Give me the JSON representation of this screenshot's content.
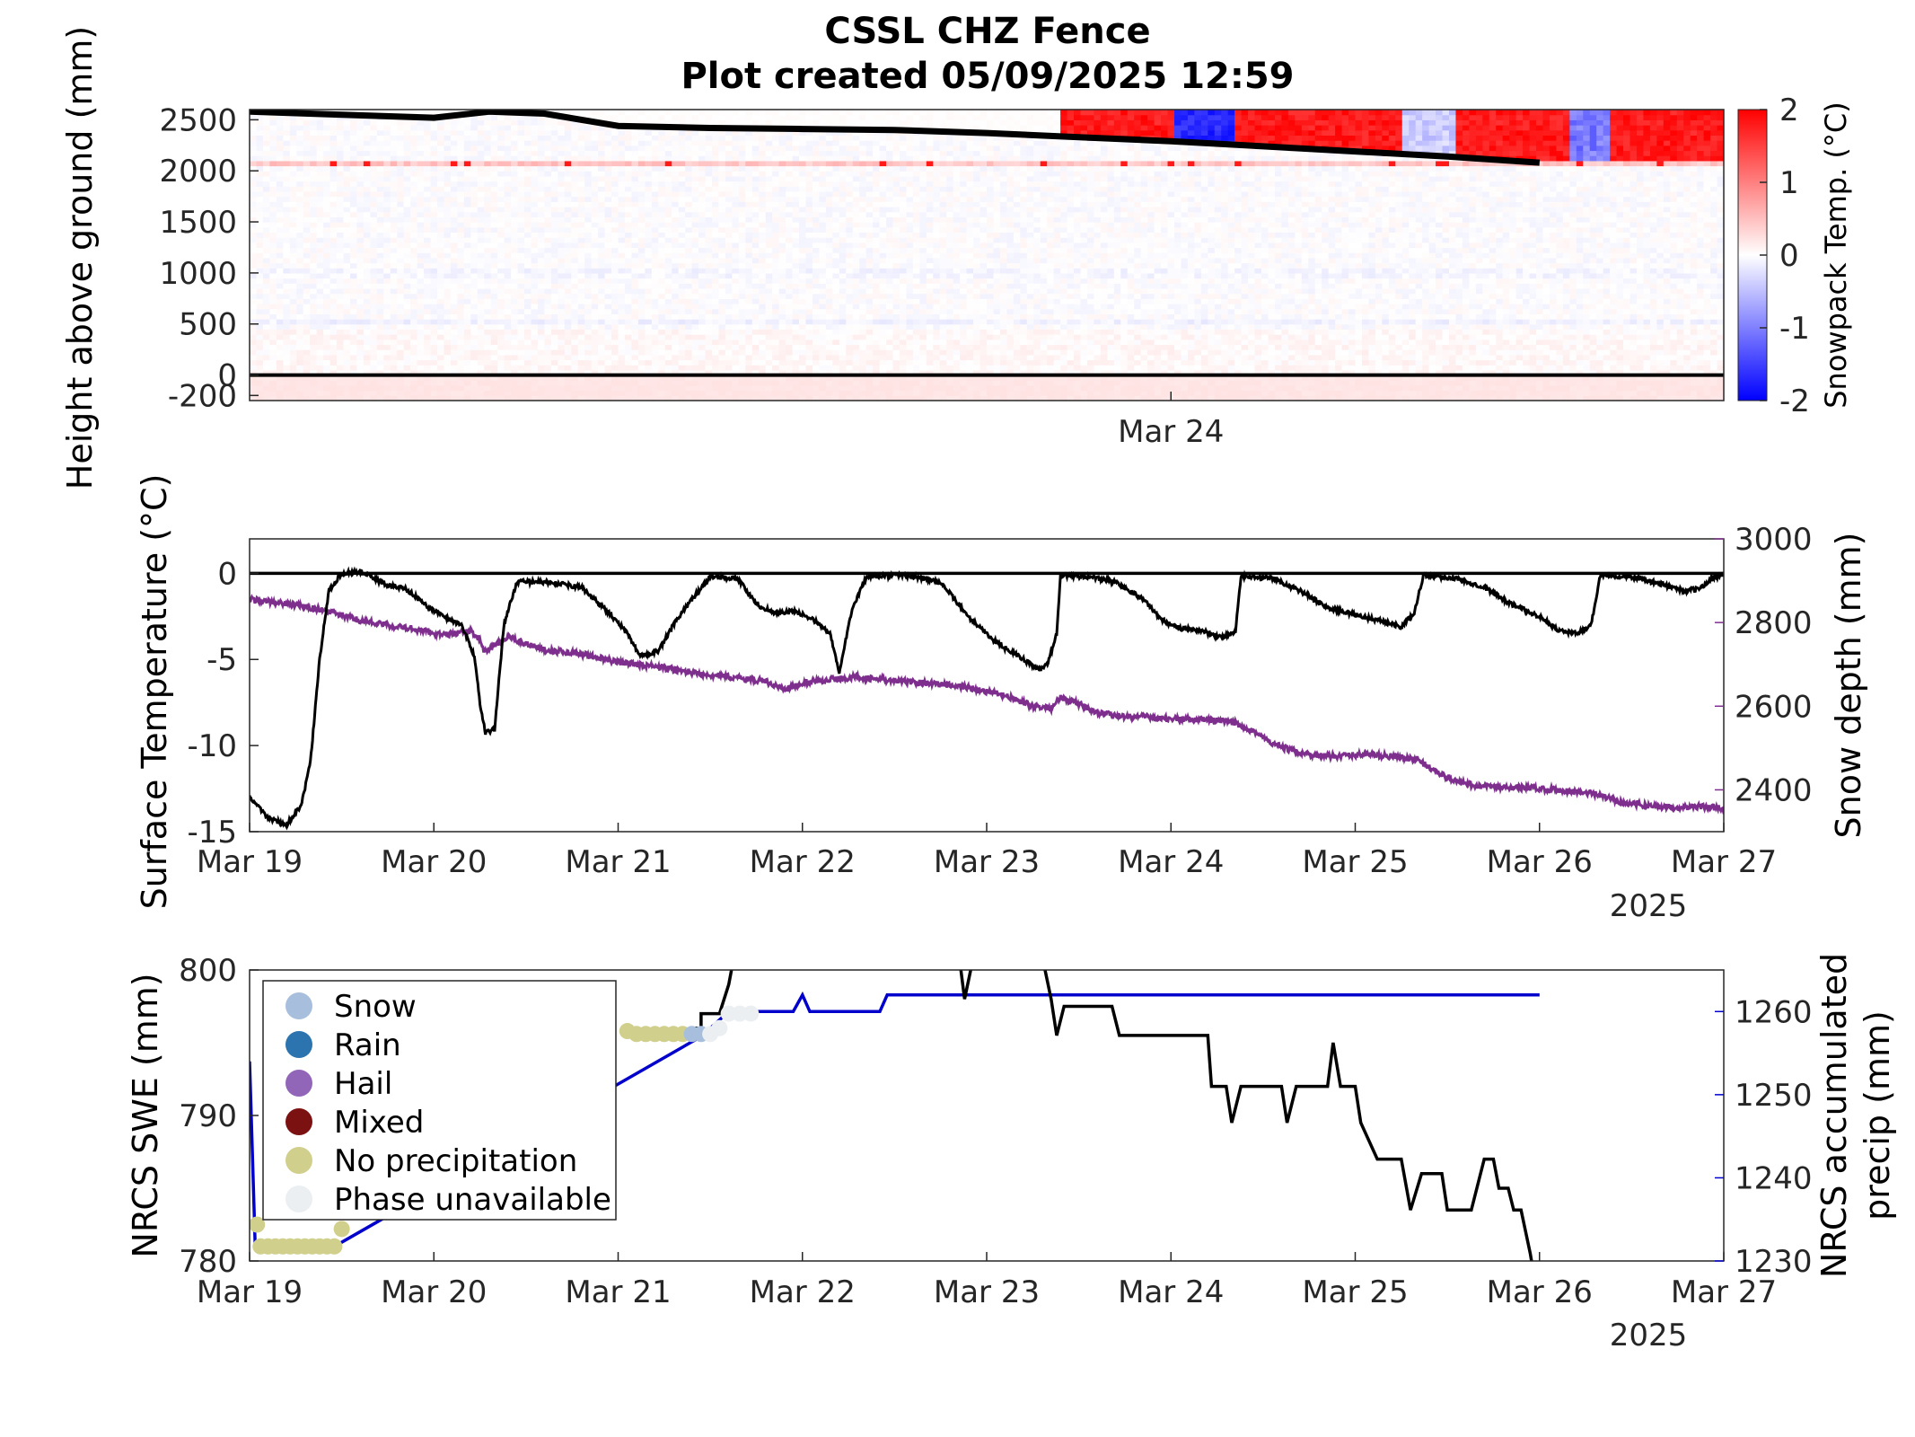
{
  "figure": {
    "title_line1": "CSSL CHZ Fence",
    "title_line2": "Plot created 05/09/2025 12:59"
  },
  "chart_data": [
    {
      "type": "heatmap",
      "ylabel": "Height above ground (mm)",
      "yticks": [
        "2500",
        "2000",
        "1500",
        "1000",
        "500",
        "0",
        "-200"
      ],
      "xticks": [
        "Mar 24"
      ],
      "colorbar": {
        "label": "Snowpack Temp. (°C)",
        "ticks": [
          "2",
          "1",
          "0",
          "-1",
          "-2"
        ],
        "range": [
          -2,
          2
        ],
        "colormap": [
          "#0000ff",
          "#ffffff",
          "#ff0000"
        ]
      },
      "snow_surface_mm": [
        [
          19.0,
          2580
        ],
        [
          19.5,
          2550
        ],
        [
          20.0,
          2520
        ],
        [
          20.3,
          2580
        ],
        [
          20.6,
          2560
        ],
        [
          21.0,
          2440
        ],
        [
          21.5,
          2420
        ],
        [
          22.0,
          2410
        ],
        [
          22.5,
          2400
        ],
        [
          23.0,
          2370
        ],
        [
          23.5,
          2330
        ],
        [
          24.0,
          2290
        ],
        [
          24.5,
          2240
        ],
        [
          25.0,
          2190
        ],
        [
          25.5,
          2140
        ],
        [
          26.0,
          2080
        ]
      ]
    },
    {
      "type": "line",
      "ylabel": "Surface Temperature (°C)",
      "y2label": "Snow depth (mm)",
      "ylim": [
        -15,
        2
      ],
      "y2lim": [
        2300,
        3000
      ],
      "yticks": [
        "0",
        "-5",
        "-10",
        "-15"
      ],
      "y2ticks": [
        "3000",
        "2800",
        "2600",
        "2400"
      ],
      "xticks": [
        "Mar 19",
        "Mar 20",
        "Mar 21",
        "Mar 22",
        "Mar 23",
        "Mar 24",
        "Mar 25",
        "Mar 26",
        "Mar 27"
      ],
      "year_label": "2025",
      "colors": {
        "temp": "#000000",
        "depth": "#7e2f8e"
      },
      "series": [
        {
          "axis": "left",
          "points": [
            [
              19.0,
              -13.0
            ],
            [
              19.1,
              -14.2
            ],
            [
              19.2,
              -14.6
            ],
            [
              19.28,
              -13.5
            ],
            [
              19.33,
              -11.0
            ],
            [
              19.38,
              -5.0
            ],
            [
              19.43,
              -1.0
            ],
            [
              19.5,
              0.0
            ],
            [
              19.6,
              0.1
            ],
            [
              19.75,
              -0.7
            ],
            [
              19.85,
              -0.9
            ],
            [
              19.95,
              -1.8
            ],
            [
              20.05,
              -2.5
            ],
            [
              20.15,
              -3.0
            ],
            [
              20.22,
              -4.8
            ],
            [
              20.25,
              -7.5
            ],
            [
              20.28,
              -9.3
            ],
            [
              20.33,
              -9.0
            ],
            [
              20.38,
              -3.0
            ],
            [
              20.45,
              -0.5
            ],
            [
              20.6,
              -0.5
            ],
            [
              20.8,
              -0.8
            ],
            [
              20.95,
              -2.3
            ],
            [
              21.05,
              -3.5
            ],
            [
              21.12,
              -4.8
            ],
            [
              21.22,
              -4.5
            ],
            [
              21.3,
              -3.0
            ],
            [
              21.4,
              -1.5
            ],
            [
              21.5,
              -0.2
            ],
            [
              21.65,
              -0.3
            ],
            [
              21.75,
              -1.8
            ],
            [
              21.85,
              -2.3
            ],
            [
              21.95,
              -2.2
            ],
            [
              22.05,
              -2.6
            ],
            [
              22.15,
              -3.5
            ],
            [
              22.2,
              -5.8
            ],
            [
              22.27,
              -2.0
            ],
            [
              22.35,
              -0.2
            ],
            [
              22.55,
              -0.1
            ],
            [
              22.75,
              -0.5
            ],
            [
              22.9,
              -2.5
            ],
            [
              23.05,
              -4.0
            ],
            [
              23.2,
              -5.0
            ],
            [
              23.28,
              -5.6
            ],
            [
              23.33,
              -5.3
            ],
            [
              23.38,
              -3.5
            ],
            [
              23.4,
              -0.1
            ],
            [
              23.55,
              -0.2
            ],
            [
              23.7,
              -0.5
            ],
            [
              23.85,
              -1.5
            ],
            [
              23.95,
              -2.7
            ],
            [
              24.05,
              -3.2
            ],
            [
              24.15,
              -3.3
            ],
            [
              24.28,
              -3.7
            ],
            [
              24.35,
              -3.4
            ],
            [
              24.38,
              -0.2
            ],
            [
              24.55,
              -0.3
            ],
            [
              24.7,
              -1.0
            ],
            [
              24.85,
              -2.0
            ],
            [
              25.0,
              -2.4
            ],
            [
              25.15,
              -2.8
            ],
            [
              25.25,
              -3.1
            ],
            [
              25.32,
              -2.3
            ],
            [
              25.37,
              -0.1
            ],
            [
              25.55,
              -0.3
            ],
            [
              25.7,
              -0.8
            ],
            [
              25.85,
              -1.8
            ],
            [
              26.0,
              -2.5
            ],
            [
              26.1,
              -3.3
            ],
            [
              26.2,
              -3.5
            ],
            [
              26.28,
              -3.0
            ],
            [
              26.33,
              -0.1
            ],
            [
              26.5,
              -0.2
            ],
            [
              26.65,
              -0.6
            ],
            [
              26.78,
              -1.0
            ],
            [
              26.87,
              -0.9
            ],
            [
              26.95,
              -0.2
            ],
            [
              27.0,
              -0.1
            ]
          ]
        },
        {
          "axis": "right",
          "points": [
            [
              19.0,
              2855
            ],
            [
              19.2,
              2845
            ],
            [
              19.4,
              2830
            ],
            [
              19.6,
              2805
            ],
            [
              19.8,
              2790
            ],
            [
              19.95,
              2780
            ],
            [
              20.05,
              2770
            ],
            [
              20.2,
              2780
            ],
            [
              20.25,
              2760
            ],
            [
              20.27,
              2730
            ],
            [
              20.35,
              2750
            ],
            [
              20.4,
              2765
            ],
            [
              20.6,
              2735
            ],
            [
              20.8,
              2725
            ],
            [
              21.0,
              2705
            ],
            [
              21.2,
              2695
            ],
            [
              21.4,
              2680
            ],
            [
              21.6,
              2670
            ],
            [
              21.8,
              2660
            ],
            [
              21.9,
              2640
            ],
            [
              22.05,
              2660
            ],
            [
              22.3,
              2670
            ],
            [
              22.5,
              2660
            ],
            [
              22.7,
              2655
            ],
            [
              22.9,
              2645
            ],
            [
              23.1,
              2625
            ],
            [
              23.25,
              2600
            ],
            [
              23.35,
              2595
            ],
            [
              23.4,
              2620
            ],
            [
              23.5,
              2605
            ],
            [
              23.6,
              2585
            ],
            [
              23.75,
              2575
            ],
            [
              23.85,
              2575
            ],
            [
              24.0,
              2570
            ],
            [
              24.2,
              2567
            ],
            [
              24.35,
              2560
            ],
            [
              24.45,
              2540
            ],
            [
              24.55,
              2510
            ],
            [
              24.65,
              2495
            ],
            [
              24.75,
              2485
            ],
            [
              24.85,
              2480
            ],
            [
              25.05,
              2485
            ],
            [
              25.2,
              2480
            ],
            [
              25.35,
              2470
            ],
            [
              25.45,
              2440
            ],
            [
              25.55,
              2420
            ],
            [
              25.65,
              2410
            ],
            [
              25.8,
              2405
            ],
            [
              25.95,
              2405
            ],
            [
              26.1,
              2400
            ],
            [
              26.3,
              2390
            ],
            [
              26.45,
              2370
            ],
            [
              26.6,
              2362
            ],
            [
              26.75,
              2358
            ],
            [
              26.9,
              2360
            ],
            [
              27.0,
              2355
            ]
          ]
        }
      ]
    },
    {
      "type": "line",
      "ylabel": "NRCS SWE (mm)",
      "y2label_line1": "NRCS accumulated",
      "y2label_line2": "precip (mm)",
      "ylim": [
        780,
        800
      ],
      "y2lim": [
        1230,
        1265
      ],
      "yticks": [
        "800",
        "790",
        "780"
      ],
      "y2ticks": [
        "1260",
        "1250",
        "1240",
        "1230"
      ],
      "xticks": [
        "Mar 19",
        "Mar 20",
        "Mar 21",
        "Mar 22",
        "Mar 23",
        "Mar 24",
        "Mar 25",
        "Mar 26",
        "Mar 27"
      ],
      "year_label": "2025",
      "colors": {
        "swe": "#000000",
        "precip": "#0000cd"
      },
      "series": [
        {
          "axis": "left",
          "points": [
            [
              21.4,
              796
            ],
            [
              21.45,
              796
            ],
            [
              21.45,
              797
            ],
            [
              21.55,
              797
            ],
            [
              21.6,
              799
            ],
            [
              21.63,
              801
            ],
            [
              21.7,
              803
            ],
            [
              21.8,
              805
            ],
            [
              22.0,
              806
            ],
            [
              22.2,
              806
            ],
            [
              22.8,
              805
            ],
            [
              22.85,
              801
            ],
            [
              22.88,
              798
            ],
            [
              22.93,
              801
            ],
            [
              23.3,
              801
            ],
            [
              23.35,
              798
            ],
            [
              23.38,
              795.5
            ],
            [
              23.42,
              797.5
            ],
            [
              23.68,
              797.5
            ],
            [
              23.72,
              795.5
            ],
            [
              24.2,
              795.5
            ],
            [
              24.22,
              792
            ],
            [
              24.3,
              792
            ],
            [
              24.33,
              789.5
            ],
            [
              24.38,
              792
            ],
            [
              24.6,
              792
            ],
            [
              24.63,
              789.5
            ],
            [
              24.68,
              792
            ],
            [
              24.85,
              792
            ],
            [
              24.88,
              795
            ],
            [
              24.92,
              792
            ],
            [
              25.0,
              792
            ],
            [
              25.03,
              789.5
            ],
            [
              25.12,
              787
            ],
            [
              25.25,
              787
            ],
            [
              25.3,
              783.5
            ],
            [
              25.36,
              786
            ],
            [
              25.47,
              786
            ],
            [
              25.5,
              783.5
            ],
            [
              25.63,
              783.5
            ],
            [
              25.7,
              787
            ],
            [
              25.75,
              787
            ],
            [
              25.78,
              785
            ],
            [
              25.83,
              785
            ],
            [
              25.86,
              783.5
            ],
            [
              25.9,
              783.5
            ],
            [
              25.95,
              780.5
            ],
            [
              25.97,
              779
            ]
          ]
        },
        {
          "axis": "right",
          "points": [
            [
              19.0,
              1254
            ],
            [
              19.03,
              1232
            ],
            [
              19.1,
              1232
            ],
            [
              19.3,
              1232
            ],
            [
              19.48,
              1232
            ],
            [
              21.45,
              1257
            ],
            [
              21.6,
              1260
            ],
            [
              21.95,
              1260
            ],
            [
              22.0,
              1262
            ],
            [
              22.04,
              1260
            ],
            [
              22.42,
              1260
            ],
            [
              22.46,
              1262
            ],
            [
              26.0,
              1262
            ]
          ]
        }
      ],
      "phase_markers": [
        {
          "x": 19.04,
          "y": 782.5,
          "phase": "No precipitation"
        },
        {
          "x": 19.06,
          "y": 781
        },
        {
          "x": 19.1,
          "y": 781
        },
        {
          "x": 19.14,
          "y": 781
        },
        {
          "x": 19.18,
          "y": 781
        },
        {
          "x": 19.22,
          "y": 781
        },
        {
          "x": 19.26,
          "y": 781
        },
        {
          "x": 19.3,
          "y": 781
        },
        {
          "x": 19.34,
          "y": 781
        },
        {
          "x": 19.38,
          "y": 781
        },
        {
          "x": 19.42,
          "y": 781
        },
        {
          "x": 19.46,
          "y": 781
        },
        {
          "x": 19.5,
          "y": 782.2
        },
        {
          "x": 21.05,
          "y": 795.8
        },
        {
          "x": 21.1,
          "y": 795.6
        },
        {
          "x": 21.15,
          "y": 795.6
        },
        {
          "x": 21.2,
          "y": 795.6
        },
        {
          "x": 21.25,
          "y": 795.6
        },
        {
          "x": 21.3,
          "y": 795.6
        },
        {
          "x": 21.35,
          "y": 795.6
        },
        {
          "x": 21.4,
          "y": 795.6,
          "phase": "Snow"
        },
        {
          "x": 21.45,
          "y": 795.6,
          "phase": "Snow"
        },
        {
          "x": 21.5,
          "y": 795.6,
          "phase": "Phase unavailable"
        },
        {
          "x": 21.55,
          "y": 796,
          "phase": "Phase unavailable"
        },
        {
          "x": 21.6,
          "y": 797,
          "phase": "Phase unavailable"
        },
        {
          "x": 21.66,
          "y": 797,
          "phase": "Phase unavailable"
        },
        {
          "x": 21.72,
          "y": 797,
          "phase": "Phase unavailable"
        }
      ],
      "legend": {
        "placement": "top-left",
        "entries": [
          {
            "label": "Snow",
            "color": "#a7bfdc"
          },
          {
            "label": "Rain",
            "color": "#2c74b0"
          },
          {
            "label": "Hail",
            "color": "#9166b9"
          },
          {
            "label": "Mixed",
            "color": "#7c1112"
          },
          {
            "label": "No precipitation",
            "color": "#d0cf8c"
          },
          {
            "label": "Phase unavailable",
            "color": "#eceff2"
          }
        ]
      }
    }
  ]
}
